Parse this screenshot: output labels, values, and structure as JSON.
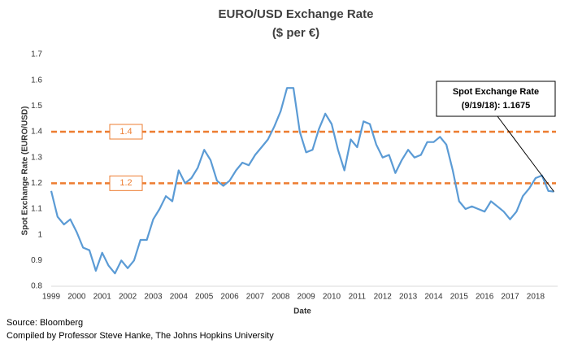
{
  "chart_data": {
    "type": "line",
    "title": "EURO/USD Exchange Rate",
    "subtitle": "($ per €)",
    "x_label": "Date",
    "y_label": "Spot Exchange Rate (EURO/USD)",
    "xlim": [
      1999,
      2018.8
    ],
    "xticks": [
      1999,
      2000,
      2001,
      2002,
      2003,
      2004,
      2005,
      2006,
      2007,
      2008,
      2009,
      2010,
      2011,
      2012,
      2013,
      2014,
      2015,
      2016,
      2017,
      2018
    ],
    "ylim": [
      0.8,
      1.7
    ],
    "yticks": [
      0.8,
      0.9,
      1,
      1.1,
      1.2,
      1.3,
      1.4,
      1.5,
      1.6,
      1.7
    ],
    "grid": false,
    "reference_lines": [
      1.4,
      1.2
    ],
    "reference_color": "#ed7d31",
    "x": [
      1999.0,
      1999.25,
      1999.5,
      1999.75,
      2000.0,
      2000.25,
      2000.5,
      2000.75,
      2001.0,
      2001.25,
      2001.5,
      2001.75,
      2002.0,
      2002.25,
      2002.5,
      2002.75,
      2003.0,
      2003.25,
      2003.5,
      2003.75,
      2004.0,
      2004.25,
      2004.5,
      2004.75,
      2005.0,
      2005.25,
      2005.5,
      2005.75,
      2006.0,
      2006.25,
      2006.5,
      2006.75,
      2007.0,
      2007.25,
      2007.5,
      2007.75,
      2008.0,
      2008.25,
      2008.5,
      2008.75,
      2009.0,
      2009.25,
      2009.5,
      2009.75,
      2010.0,
      2010.25,
      2010.5,
      2010.75,
      2011.0,
      2011.25,
      2011.5,
      2011.75,
      2012.0,
      2012.25,
      2012.5,
      2012.75,
      2013.0,
      2013.25,
      2013.5,
      2013.75,
      2014.0,
      2014.25,
      2014.5,
      2014.75,
      2015.0,
      2015.25,
      2015.5,
      2015.75,
      2016.0,
      2016.25,
      2016.5,
      2016.75,
      2017.0,
      2017.25,
      2017.5,
      2017.75,
      2018.0,
      2018.25,
      2018.5,
      2018.72
    ],
    "series": [
      {
        "color": "#5b9bd5",
        "values": [
          1.17,
          1.07,
          1.04,
          1.06,
          1.01,
          0.95,
          0.94,
          0.86,
          0.93,
          0.88,
          0.85,
          0.9,
          0.87,
          0.9,
          0.98,
          0.98,
          1.06,
          1.1,
          1.15,
          1.13,
          1.25,
          1.2,
          1.22,
          1.26,
          1.33,
          1.29,
          1.21,
          1.19,
          1.21,
          1.25,
          1.28,
          1.27,
          1.31,
          1.34,
          1.37,
          1.42,
          1.48,
          1.57,
          1.57,
          1.4,
          1.32,
          1.33,
          1.41,
          1.47,
          1.43,
          1.33,
          1.25,
          1.37,
          1.34,
          1.44,
          1.43,
          1.35,
          1.3,
          1.31,
          1.24,
          1.29,
          1.33,
          1.3,
          1.31,
          1.36,
          1.36,
          1.38,
          1.35,
          1.25,
          1.13,
          1.1,
          1.11,
          1.1,
          1.09,
          1.13,
          1.11,
          1.09,
          1.06,
          1.09,
          1.15,
          1.18,
          1.22,
          1.23,
          1.17,
          1.1675
        ]
      }
    ],
    "annotation": {
      "lines": [
        "Spot Exchange Rate",
        "(9/19/18): 1.1675"
      ]
    },
    "source_lines": [
      "Source: Bloomberg",
      "Compiled by Professor Steve Hanke, The Johns Hopkins University"
    ]
  }
}
